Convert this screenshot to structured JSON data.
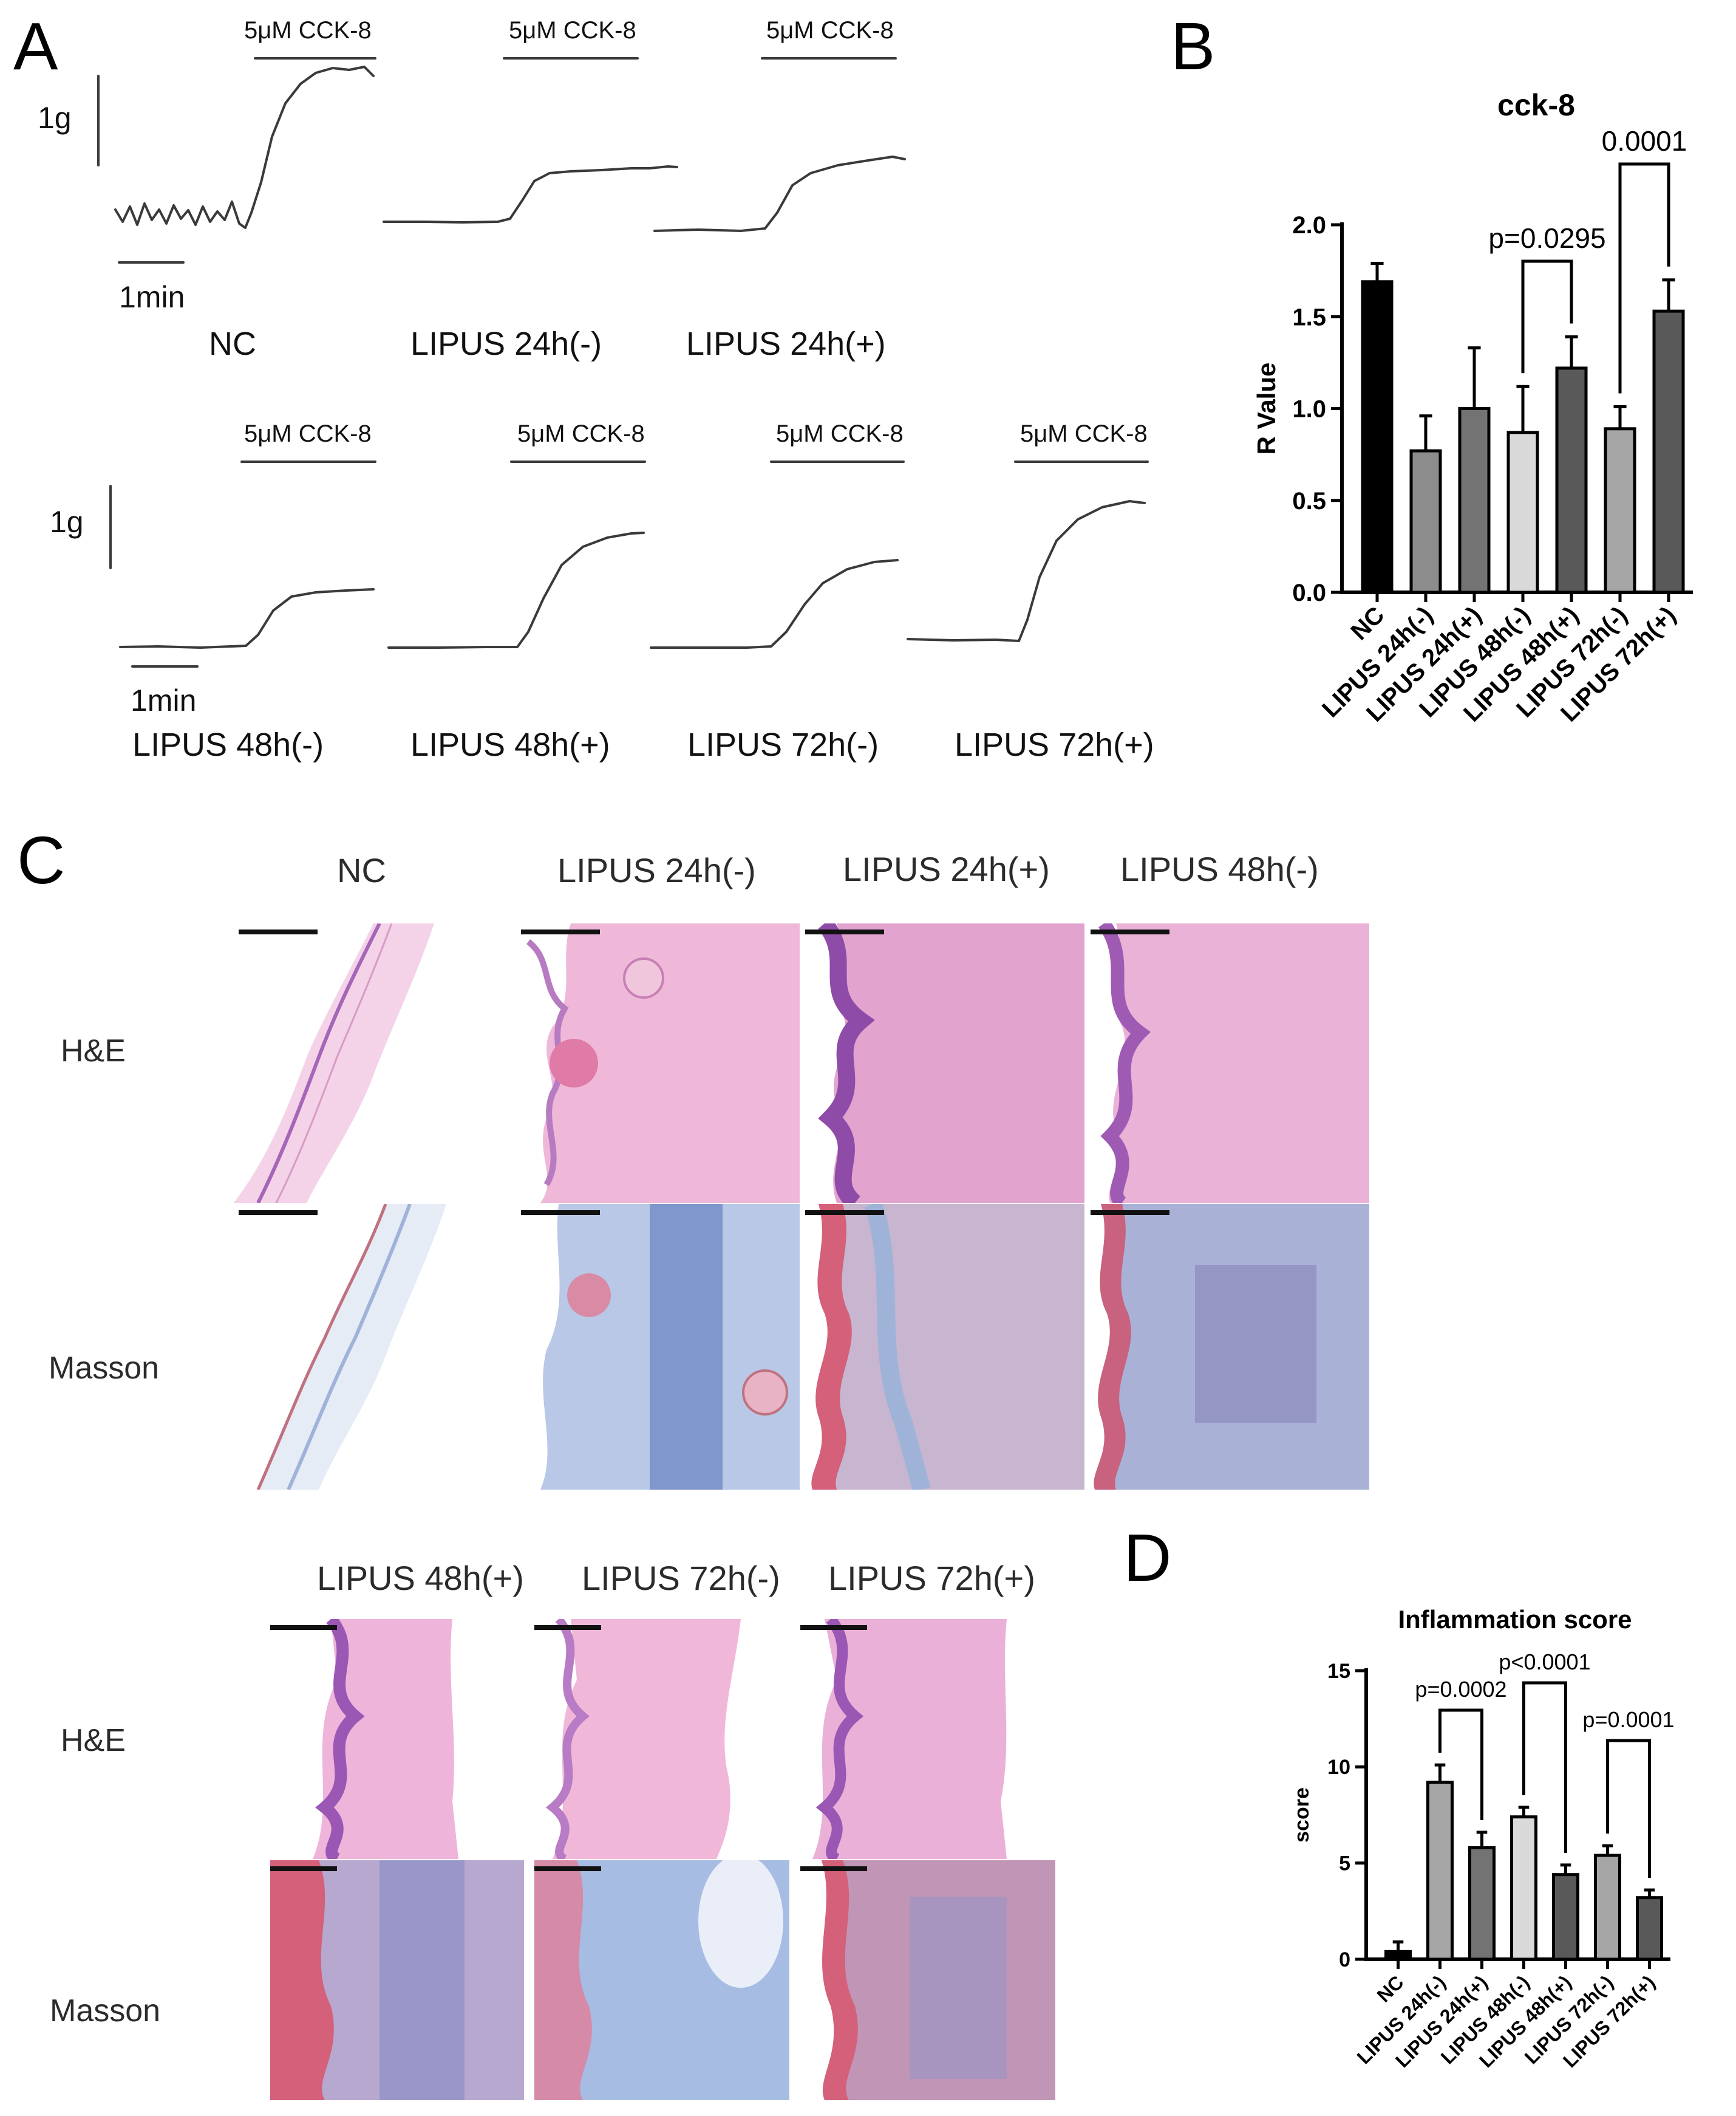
{
  "panel_letters": [
    "A",
    "B",
    "C",
    "D"
  ],
  "panel_a": {
    "stimulus_label": "5μM CCK-8",
    "force_scale": "1g",
    "time_scale": "1min",
    "row1_traces": [
      "NC",
      "LIPUS 24h(-)",
      "LIPUS 24h(+)"
    ],
    "row2_traces": [
      "LIPUS 48h(-)",
      "LIPUS 48h(+)",
      "LIPUS 72h(-)",
      "LIPUS 72h(+)"
    ]
  },
  "panel_c": {
    "top_columns": [
      "NC",
      "LIPUS 24h(-)",
      "LIPUS 24h(+)",
      "LIPUS 48h(-)"
    ],
    "bottom_columns": [
      "LIPUS 48h(+)",
      "LIPUS 72h(-)",
      "LIPUS 72h(+)"
    ],
    "row_labels": [
      "H&E",
      "Masson"
    ]
  },
  "colors": {
    "he_pink": "#e9a8d0",
    "he_purple": "#a566b8",
    "masson_blue": "#9fb3d9",
    "masson_red": "#d4607a",
    "bar_black": "#000000",
    "bar_gray": "#8c8c8c",
    "bar_light": "#d9d9d9",
    "bar_dark": "#595959"
  },
  "chart_data": [
    {
      "type": "bar",
      "title": "cck-8",
      "ylabel": "R Value",
      "xlabel": "",
      "ylim": [
        0,
        2.0
      ],
      "yticks": [
        "0.0",
        "0.5",
        "1.0",
        "1.5",
        "2.0"
      ],
      "categories": [
        "NC",
        "LIPUS 24h(-)",
        "LIPUS 24h(+)",
        "LIPUS 48h(-)",
        "LIPUS 48h(+)",
        "LIPUS 72h(-)",
        "LIPUS 72h(+)"
      ],
      "values": [
        1.69,
        0.77,
        1.0,
        0.87,
        1.22,
        0.89,
        1.53
      ],
      "errors": [
        0.1,
        0.19,
        0.33,
        0.25,
        0.17,
        0.12,
        0.17
      ],
      "bar_colors": [
        "#000000",
        "#8c8c8c",
        "#737373",
        "#d9d9d9",
        "#595959",
        "#a6a6a6",
        "#595959"
      ],
      "comparisons": [
        {
          "from": 3,
          "to": 4,
          "label": "p=0.0295"
        },
        {
          "from": 5,
          "to": 6,
          "label": "0.0001"
        }
      ]
    },
    {
      "type": "bar",
      "title": "Inflammation score",
      "ylabel": "score",
      "xlabel": "",
      "ylim": [
        0,
        15
      ],
      "yticks": [
        "0",
        "5",
        "10",
        "15"
      ],
      "categories": [
        "NC",
        "LIPUS 24h(-)",
        "LIPUS 24h(+)",
        "LIPUS 48h(-)",
        "LIPUS 48h(+)",
        "LIPUS 72h(-)",
        "LIPUS 72h(+)"
      ],
      "values": [
        0.4,
        9.2,
        5.8,
        7.4,
        4.4,
        5.4,
        3.2
      ],
      "errors": [
        0.5,
        0.9,
        0.8,
        0.5,
        0.5,
        0.5,
        0.4
      ],
      "bar_colors": [
        "#000000",
        "#a6a6a6",
        "#737373",
        "#d9d9d9",
        "#595959",
        "#a6a6a6",
        "#595959"
      ],
      "comparisons": [
        {
          "from": 1,
          "to": 2,
          "label": "p=0.0002"
        },
        {
          "from": 3,
          "to": 4,
          "label": "p<0.0001"
        },
        {
          "from": 5,
          "to": 6,
          "label": "p=0.0001"
        }
      ]
    }
  ]
}
